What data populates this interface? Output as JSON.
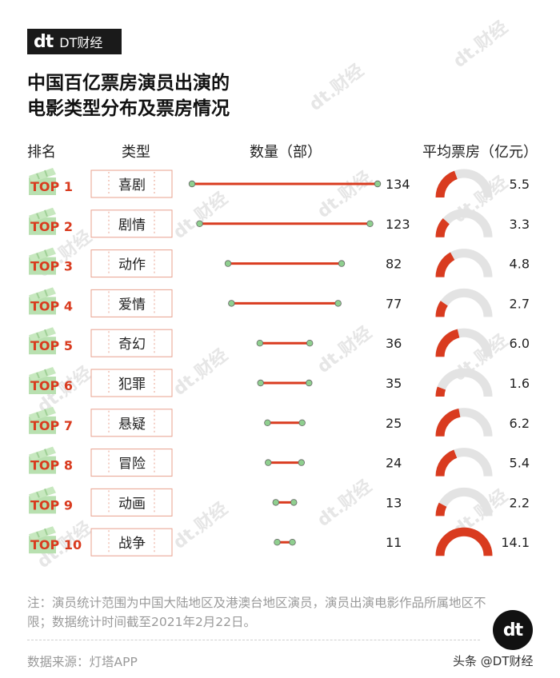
{
  "logo": {
    "mark": "dt",
    "text": "DT财经"
  },
  "title": {
    "line1": "中国百亿票房演员出演的",
    "line2": "电影类型分布及票房情况"
  },
  "headers": {
    "rank": "排名",
    "genre": "类型",
    "count": "数量（部）",
    "avg": "平均票房（亿元）"
  },
  "watermark_text": "dt.财经",
  "colors": {
    "accent": "#d93b1f",
    "node": "#8fcf8f",
    "gauge_bg": "#e3e3e3",
    "ticket_border": "#e8a08e"
  },
  "chart_data": {
    "type": "dumbbell+gauge",
    "rank_prefix": "TOP",
    "series": [
      {
        "rank": "1",
        "genre": "喜剧",
        "count": 134,
        "count_label": "134",
        "avg": 5.5,
        "avg_label": "5.5"
      },
      {
        "rank": "2",
        "genre": "剧情",
        "count": 123,
        "count_label": "123",
        "avg": 3.3,
        "avg_label": "3.3"
      },
      {
        "rank": "3",
        "genre": "动作",
        "count": 82,
        "count_label": "82",
        "avg": 4.8,
        "avg_label": "4.8"
      },
      {
        "rank": "4",
        "genre": "爱情",
        "count": 77,
        "count_label": "77",
        "avg": 2.7,
        "avg_label": "2.7"
      },
      {
        "rank": "5",
        "genre": "奇幻",
        "count": 36,
        "count_label": "36",
        "avg": 6.0,
        "avg_label": "6.0"
      },
      {
        "rank": "6",
        "genre": "犯罪",
        "count": 35,
        "count_label": "35",
        "avg": 1.6,
        "avg_label": "1.6"
      },
      {
        "rank": "7",
        "genre": "悬疑",
        "count": 25,
        "count_label": "25",
        "avg": 6.2,
        "avg_label": "6.2"
      },
      {
        "rank": "8",
        "genre": "冒险",
        "count": 24,
        "count_label": "24",
        "avg": 5.4,
        "avg_label": "5.4"
      },
      {
        "rank": "9",
        "genre": "动画",
        "count": 13,
        "count_label": "13",
        "avg": 2.2,
        "avg_label": "2.2"
      },
      {
        "rank": "10",
        "genre": "战争",
        "count": 11,
        "count_label": "11",
        "avg": 14.1,
        "avg_label": "14.1"
      }
    ]
  },
  "note": "注：演员统计范围为中国大陆地区及港澳台地区演员，演员出演电影作品所属地区不限；数据统计时间截至2021年2月22日。",
  "source": "数据来源：灯塔APP",
  "credit": "头条 @DT财经"
}
